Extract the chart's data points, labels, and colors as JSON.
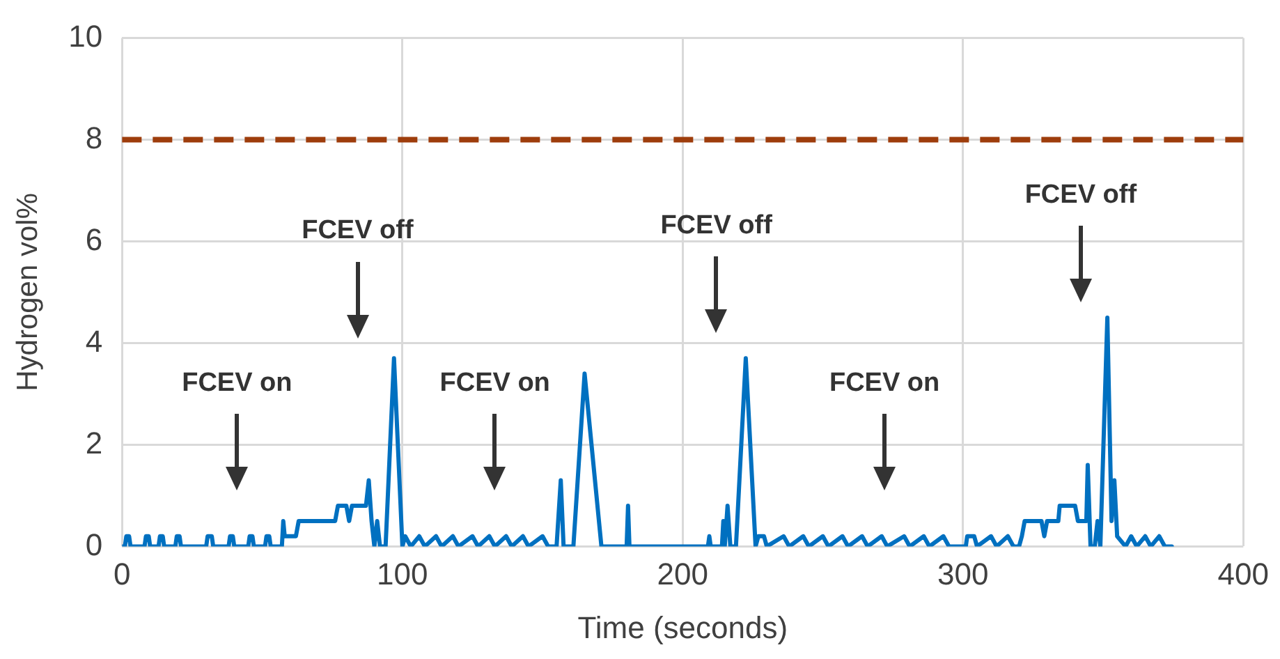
{
  "chart_data": {
    "type": "line",
    "xlabel": "Time (seconds)",
    "ylabel": "Hydrogen vol%",
    "xlim": [
      0,
      400
    ],
    "xticks": [
      0,
      100,
      200,
      300,
      400
    ],
    "ylim": [
      0,
      10
    ],
    "yticks": [
      0,
      2,
      4,
      6,
      8,
      10
    ],
    "grid": true,
    "legend": false,
    "marker": "none",
    "series": [
      {
        "color": "#0070c0",
        "x": [
          0,
          1,
          1.5,
          2.5,
          3,
          8,
          8.5,
          9.5,
          10,
          13,
          13.5,
          14.5,
          15,
          19,
          19.5,
          20.5,
          21,
          30,
          30.5,
          32,
          32.5,
          38,
          38.5,
          39.5,
          40,
          45,
          45.5,
          46.5,
          47,
          51,
          51.5,
          52.5,
          53,
          57,
          57.5,
          58,
          62,
          63,
          76,
          77,
          80,
          81,
          82,
          87,
          88,
          89,
          90,
          91,
          92,
          94,
          97,
          100,
          101,
          103,
          106,
          108,
          112,
          114,
          118,
          120,
          125,
          127,
          131,
          133,
          137,
          139,
          143,
          145,
          150,
          152,
          155,
          156.5,
          157.5,
          161,
          165,
          171,
          175,
          180,
          180.5,
          181,
          209,
          209.5,
          210,
          214,
          214.5,
          215,
          216,
          217,
          219,
          222.5,
          226,
          227,
          229,
          230,
          236,
          238,
          243,
          245,
          250,
          252,
          257,
          259,
          264,
          266,
          271,
          273,
          279,
          281,
          286,
          288,
          293,
          295,
          301,
          301.5,
          304,
          305,
          310,
          312,
          316,
          318,
          320,
          321,
          322,
          328,
          329,
          330,
          334,
          334.5,
          340,
          341,
          344,
          344.5,
          345.5,
          347,
          348,
          349,
          351.5,
          353,
          354,
          355,
          358,
          360,
          362,
          365,
          367,
          370,
          372,
          374.5
        ],
        "values": [
          0,
          0,
          0.2,
          0.2,
          0,
          0,
          0.2,
          0.2,
          0,
          0,
          0.2,
          0.2,
          0,
          0,
          0.2,
          0.2,
          0,
          0,
          0.2,
          0.2,
          0,
          0,
          0.2,
          0.2,
          0,
          0,
          0.2,
          0.2,
          0,
          0,
          0.2,
          0.2,
          0,
          0,
          0.5,
          0.2,
          0.2,
          0.5,
          0.5,
          0.8,
          0.8,
          0.5,
          0.8,
          0.8,
          1.3,
          0.5,
          0,
          0.5,
          0,
          0,
          3.7,
          0,
          0.2,
          0,
          0.2,
          0,
          0.2,
          0,
          0.2,
          0,
          0.2,
          0,
          0.2,
          0,
          0.2,
          0,
          0.2,
          0,
          0.2,
          0,
          0,
          1.3,
          0,
          0,
          3.4,
          0,
          0,
          0,
          0.8,
          0,
          0,
          0.2,
          0,
          0,
          0.5,
          0,
          0.8,
          0,
          0,
          3.7,
          0,
          0.2,
          0.2,
          0,
          0.2,
          0,
          0.2,
          0,
          0.2,
          0,
          0.2,
          0,
          0.2,
          0,
          0.2,
          0,
          0.2,
          0,
          0.2,
          0,
          0.2,
          0,
          0,
          0.2,
          0.2,
          0,
          0.2,
          0,
          0.2,
          0,
          0,
          0.2,
          0.5,
          0.5,
          0.2,
          0.5,
          0.5,
          0.8,
          0.8,
          0.5,
          0.5,
          1.6,
          0,
          0,
          0.5,
          0,
          4.5,
          0.5,
          1.3,
          0.2,
          0,
          0.2,
          0,
          0.2,
          0,
          0.2,
          0,
          0
        ]
      }
    ],
    "ref_lines": [
      {
        "axis": "y",
        "value": 8,
        "color": "#9e3d0c",
        "line_style": "dashed"
      }
    ],
    "annotations": [
      "FCEV on",
      "FCEV off",
      "FCEV on",
      "FCEV off",
      "FCEV on",
      "FCEV off"
    ]
  }
}
